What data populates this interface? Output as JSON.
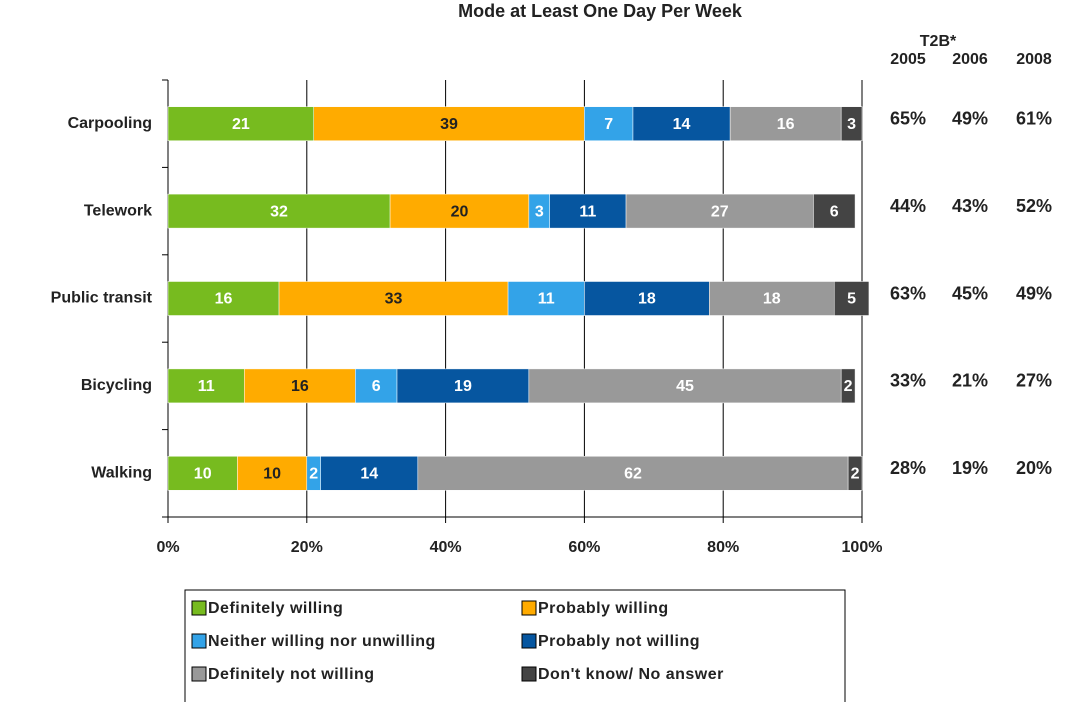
{
  "chart_data": {
    "type": "stacked_barh",
    "title": "Mode at Least One Day Per Week",
    "categories": [
      "Carpooling",
      "Telework",
      "Public transit",
      "Bicycling",
      "Walking"
    ],
    "series": [
      {
        "name": "Definitely willing",
        "color": "#77bb1f",
        "values": [
          21,
          32,
          16,
          11,
          10
        ]
      },
      {
        "name": "Probably willing",
        "color": "#ffab00",
        "values": [
          39,
          20,
          33,
          16,
          10
        ]
      },
      {
        "name": "Neither willing nor unwilling",
        "color": "#33a3e8",
        "values": [
          7,
          3,
          11,
          6,
          2
        ]
      },
      {
        "name": "Probably not willing",
        "color": "#0656a0",
        "values": [
          14,
          11,
          18,
          19,
          14
        ]
      },
      {
        "name": "Definitely not willing",
        "color": "#999999",
        "values": [
          16,
          27,
          18,
          45,
          62
        ]
      },
      {
        "name": "Don't know/ No answer",
        "color": "#444444",
        "values": [
          3,
          6,
          5,
          2,
          2
        ]
      }
    ],
    "xlim": [
      0,
      100
    ],
    "xticks": [
      {
        "value": 0,
        "label": "0%"
      },
      {
        "value": 20,
        "label": "20%"
      },
      {
        "value": 40,
        "label": "40%"
      },
      {
        "value": 60,
        "label": "60%"
      },
      {
        "value": 80,
        "label": "80%"
      },
      {
        "value": 100,
        "label": "100%"
      }
    ],
    "grid": true
  },
  "t2b": {
    "title": "T2B*",
    "years": [
      "2005",
      "2006",
      "2008"
    ],
    "rows": [
      [
        "65%",
        "49%",
        "61%"
      ],
      [
        "44%",
        "43%",
        "52%"
      ],
      [
        "63%",
        "45%",
        "49%"
      ],
      [
        "33%",
        "21%",
        "27%"
      ],
      [
        "28%",
        "19%",
        "20%"
      ]
    ]
  }
}
